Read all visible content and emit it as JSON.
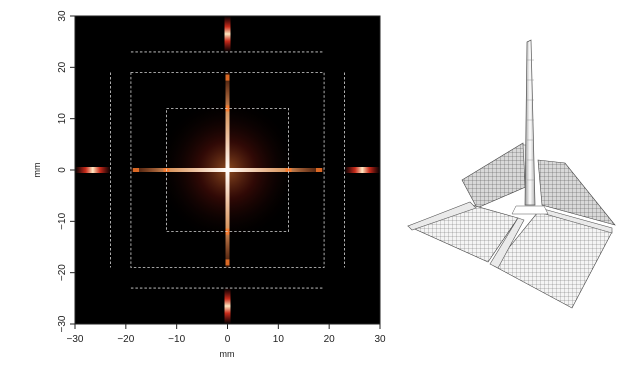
{
  "chart_data": [
    {
      "type": "heatmap",
      "title": "",
      "xlabel": "mm",
      "ylabel": "mm",
      "xlim": [
        -30,
        30
      ],
      "ylim": [
        -30,
        30
      ],
      "xticks": [
        -30,
        -20,
        -10,
        0,
        10,
        20,
        30
      ],
      "yticks": [
        -30,
        -20,
        -10,
        0,
        10,
        20,
        30
      ],
      "tick_labels_x": [
        "−30",
        "−20",
        "−10",
        "0",
        "10",
        "20",
        "30"
      ],
      "tick_labels_y": [
        "−30",
        "−20",
        "−10",
        "0",
        "10",
        "20",
        "30"
      ],
      "colormap": "black-red-yellow-white",
      "background_color": "#000000",
      "guide_color": "#d8d8d8",
      "grid": false,
      "legend": "none",
      "guide_boxes_half_width": [
        12,
        19
      ],
      "guide_lines_offset": 23,
      "bright_regions": [
        {
          "axis": "x",
          "from": -19,
          "to": 19,
          "level": "high"
        },
        {
          "axis": "y",
          "from": -19,
          "to": 19,
          "level": "high"
        },
        {
          "axis": "x",
          "from": -30,
          "to": -23,
          "level": "medium"
        },
        {
          "axis": "x",
          "from": 23,
          "to": 30,
          "level": "medium"
        },
        {
          "axis": "y",
          "from": -30,
          "to": -23,
          "level": "medium"
        },
        {
          "axis": "y",
          "from": 23,
          "to": 30,
          "level": "medium"
        }
      ]
    },
    {
      "type": "surface",
      "title": "",
      "description_free": true,
      "mesh_color": "#555555",
      "surface_color": "#f2f2f2",
      "peak": "central spike with cross-shaped ridges along both axes"
    }
  ]
}
